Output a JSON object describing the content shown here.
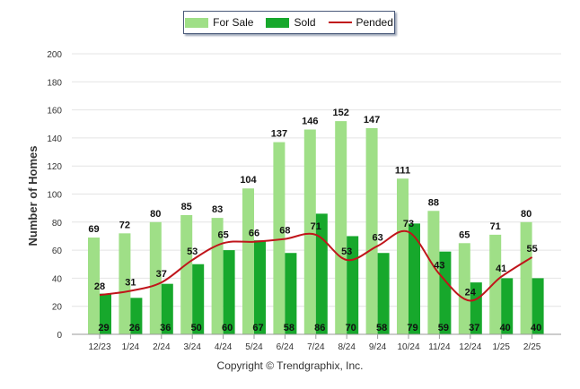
{
  "legend": {
    "for_sale": "For Sale",
    "sold": "Sold",
    "pended": "Pended"
  },
  "copyright": "Copyright © Trendgraphix, Inc.",
  "colors": {
    "for_sale": "#9fdf87",
    "sold": "#17a82c",
    "pended": "#c0151b",
    "grid": "#e4e4e4",
    "axis": "#333333"
  },
  "chart_data": {
    "type": "bar",
    "ylabel": "Number of Homes",
    "xlabel": "",
    "ylim": [
      0,
      200
    ],
    "yticks": [
      0,
      20,
      40,
      60,
      80,
      100,
      120,
      140,
      160,
      180,
      200
    ],
    "grid": true,
    "legend_position": "top-center",
    "categories": [
      "12/23",
      "1/24",
      "2/24",
      "3/24",
      "4/24",
      "5/24",
      "6/24",
      "7/24",
      "8/24",
      "9/24",
      "10/24",
      "11/24",
      "12/24",
      "1/25",
      "2/25"
    ],
    "series": [
      {
        "name": "For Sale",
        "kind": "bar",
        "values": [
          69,
          72,
          80,
          85,
          83,
          104,
          137,
          146,
          152,
          147,
          111,
          88,
          65,
          71,
          80
        ]
      },
      {
        "name": "Sold",
        "kind": "bar",
        "values": [
          29,
          26,
          36,
          50,
          60,
          67,
          58,
          86,
          70,
          58,
          79,
          59,
          37,
          40,
          40
        ]
      },
      {
        "name": "Pended",
        "kind": "line",
        "values": [
          28,
          31,
          37,
          53,
          65,
          66,
          68,
          71,
          53,
          63,
          73,
          43,
          24,
          41,
          55
        ]
      }
    ]
  }
}
